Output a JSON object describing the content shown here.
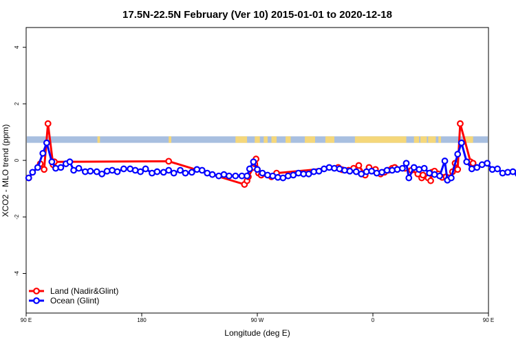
{
  "chart_data": {
    "type": "line",
    "title": "17.5N-22.5N February (Ver 10)   2015-01-01 to 2020-12-18",
    "xlabel": "Longitude (deg E)",
    "ylabel": "XCO2 - MLO trend (ppm)",
    "xlim": [
      90,
      450
    ],
    "ylim": [
      -5.4,
      4.7
    ],
    "xticks": [
      {
        "value": 90,
        "label": "90 E"
      },
      {
        "value": 180,
        "label": "180"
      },
      {
        "value": 270,
        "label": "90 W"
      },
      {
        "value": 360,
        "label": "0"
      },
      {
        "value": 450,
        "label": "90 E"
      }
    ],
    "yticks": [
      {
        "value": -4,
        "label": "-4"
      },
      {
        "value": -2,
        "label": "-2"
      },
      {
        "value": 0,
        "label": "0"
      },
      {
        "value": 2,
        "label": "2"
      },
      {
        "value": 4,
        "label": "4"
      }
    ],
    "grid": false,
    "legend": "bottom-left",
    "surface_band": {
      "y_range": [
        0.62,
        0.85
      ],
      "colors": {
        "ocean": "#a8bfe0",
        "land": "#f5d77a"
      },
      "land_segments": [
        [
          145.5,
          147.5
        ],
        [
          201,
          203
        ],
        [
          253,
          256
        ],
        [
          256,
          262
        ],
        [
          268,
          272
        ],
        [
          275,
          278
        ],
        [
          281,
          285
        ],
        [
          292,
          296
        ],
        [
          307,
          315
        ],
        [
          323,
          330
        ],
        [
          346,
          360
        ],
        [
          360,
          386
        ],
        [
          392,
          396
        ],
        [
          397,
          402
        ],
        [
          403,
          409
        ],
        [
          411,
          413
        ],
        [
          432,
          438
        ]
      ]
    },
    "series": [
      {
        "name": "Land (Nadir&Glint)",
        "color": "#ff0000",
        "points": [
          [
            92,
            -0.62
          ],
          [
            101,
            -0.12
          ],
          [
            104,
            -0.32
          ],
          [
            107,
            1.3
          ],
          [
            111,
            -0.15
          ],
          [
            112,
            -0.05
          ],
          [
            201,
            -0.03
          ],
          [
            260,
            -0.85
          ],
          [
            262,
            -0.72
          ],
          [
            263,
            -0.58
          ],
          [
            267,
            -0.25
          ],
          [
            268,
            -0.12
          ],
          [
            269,
            0.05
          ],
          [
            271,
            -0.45
          ],
          [
            273,
            -0.52
          ],
          [
            281,
            -0.58
          ],
          [
            285,
            -0.45
          ],
          [
            333,
            -0.25
          ],
          [
            336,
            -0.33
          ],
          [
            341,
            -0.35
          ],
          [
            345,
            -0.28
          ],
          [
            349,
            -0.18
          ],
          [
            354,
            -0.52
          ],
          [
            357,
            -0.25
          ],
          [
            362,
            -0.32
          ],
          [
            366,
            -0.48
          ],
          [
            369,
            -0.42
          ],
          [
            372,
            -0.35
          ],
          [
            375,
            -0.28
          ],
          [
            377,
            -0.25
          ],
          [
            385,
            -0.28
          ],
          [
            390,
            -0.35
          ],
          [
            395,
            -0.48
          ],
          [
            398,
            -0.62
          ],
          [
            399,
            -0.52
          ],
          [
            403,
            -0.62
          ],
          [
            405,
            -0.72
          ],
          [
            406,
            -0.42
          ],
          [
            408,
            -0.38
          ],
          [
            411,
            -0.48
          ],
          [
            414,
            -0.6
          ],
          [
            417,
            -0.58
          ],
          [
            419,
            -0.62
          ],
          [
            422,
            -0.4
          ],
          [
            424,
            -0.1
          ],
          [
            426,
            -0.32
          ],
          [
            428,
            1.3
          ],
          [
            436,
            -0.05
          ],
          [
            438,
            -0.1
          ]
        ]
      },
      {
        "name": "Ocean (Glint)",
        "color": "#0000ff",
        "points": [
          [
            92,
            -0.62
          ],
          [
            95,
            -0.42
          ],
          [
            99,
            -0.25
          ],
          [
            103,
            0.25
          ],
          [
            106,
            0.62
          ],
          [
            110,
            -0.05
          ],
          [
            113,
            -0.28
          ],
          [
            117,
            -0.25
          ],
          [
            121,
            -0.12
          ],
          [
            124,
            -0.05
          ],
          [
            127,
            -0.35
          ],
          [
            131,
            -0.28
          ],
          [
            136,
            -0.4
          ],
          [
            140,
            -0.38
          ],
          [
            145,
            -0.4
          ],
          [
            149,
            -0.48
          ],
          [
            153,
            -0.38
          ],
          [
            157,
            -0.35
          ],
          [
            161,
            -0.4
          ],
          [
            166,
            -0.3
          ],
          [
            171,
            -0.3
          ],
          [
            175,
            -0.35
          ],
          [
            179,
            -0.4
          ],
          [
            183,
            -0.3
          ],
          [
            188,
            -0.45
          ],
          [
            192,
            -0.4
          ],
          [
            197,
            -0.42
          ],
          [
            201,
            -0.35
          ],
          [
            205,
            -0.45
          ],
          [
            210,
            -0.35
          ],
          [
            214,
            -0.45
          ],
          [
            219,
            -0.42
          ],
          [
            223,
            -0.32
          ],
          [
            227,
            -0.35
          ],
          [
            231,
            -0.45
          ],
          [
            235,
            -0.5
          ],
          [
            240,
            -0.55
          ],
          [
            244,
            -0.5
          ],
          [
            248,
            -0.55
          ],
          [
            253,
            -0.55
          ],
          [
            258,
            -0.55
          ],
          [
            262,
            -0.55
          ],
          [
            264,
            -0.3
          ],
          [
            267,
            -0.05
          ],
          [
            270,
            -0.32
          ],
          [
            274,
            -0.45
          ],
          [
            278,
            -0.52
          ],
          [
            282,
            -0.55
          ],
          [
            286,
            -0.6
          ],
          [
            290,
            -0.62
          ],
          [
            294,
            -0.55
          ],
          [
            298,
            -0.52
          ],
          [
            302,
            -0.45
          ],
          [
            306,
            -0.48
          ],
          [
            310,
            -0.48
          ],
          [
            314,
            -0.4
          ],
          [
            318,
            -0.38
          ],
          [
            322,
            -0.3
          ],
          [
            326,
            -0.25
          ],
          [
            330,
            -0.28
          ],
          [
            334,
            -0.3
          ],
          [
            338,
            -0.35
          ],
          [
            342,
            -0.38
          ],
          [
            347,
            -0.4
          ],
          [
            351,
            -0.48
          ],
          [
            355,
            -0.4
          ],
          [
            359,
            -0.38
          ],
          [
            363,
            -0.45
          ],
          [
            367,
            -0.42
          ],
          [
            371,
            -0.35
          ],
          [
            375,
            -0.35
          ],
          [
            379,
            -0.32
          ],
          [
            383,
            -0.28
          ],
          [
            386,
            -0.1
          ],
          [
            388,
            -0.62
          ],
          [
            392,
            -0.25
          ],
          [
            396,
            -0.32
          ],
          [
            400,
            -0.28
          ],
          [
            404,
            -0.45
          ],
          [
            408,
            -0.5
          ],
          [
            412,
            -0.55
          ],
          [
            416,
            -0.02
          ],
          [
            418,
            -0.7
          ],
          [
            421,
            -0.62
          ],
          [
            426,
            0.22
          ],
          [
            429,
            0.62
          ],
          [
            433,
            -0.05
          ],
          [
            437,
            -0.3
          ],
          [
            441,
            -0.25
          ],
          [
            445,
            -0.15
          ],
          [
            449,
            -0.1
          ],
          [
            453,
            -0.32
          ],
          [
            457,
            -0.3
          ],
          [
            461,
            -0.45
          ],
          [
            465,
            -0.42
          ],
          [
            469,
            -0.4
          ],
          [
            473,
            -0.48
          ],
          [
            477,
            -0.42
          ],
          [
            481,
            -0.35
          ]
        ]
      }
    ]
  }
}
